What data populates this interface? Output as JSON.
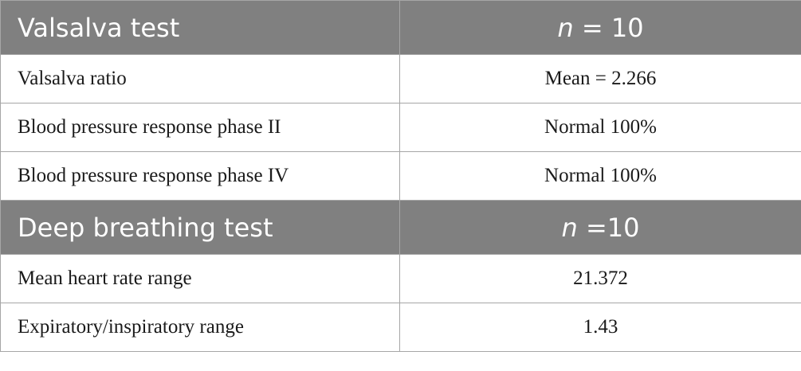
{
  "sections": [
    {
      "title": "Valsalva test",
      "n_var": "n",
      "n_rest": " = 10",
      "rows": [
        {
          "label": "Valsalva ratio",
          "value": "Mean = 2.266"
        },
        {
          "label": "Blood pressure response phase II",
          "value": "Normal 100%"
        },
        {
          "label": "Blood pressure response phase IV",
          "value": "Normal 100%"
        }
      ]
    },
    {
      "title": "Deep breathing test",
      "n_var": "n",
      "n_rest": " =10",
      "rows": [
        {
          "label": "Mean heart rate range",
          "value": "21.372"
        },
        {
          "label": "Expiratory/inspiratory range",
          "value": "1.43"
        }
      ]
    }
  ],
  "colors": {
    "header_bg": "#808080",
    "header_text": "#ffffff",
    "border": "#a6a6a6"
  }
}
